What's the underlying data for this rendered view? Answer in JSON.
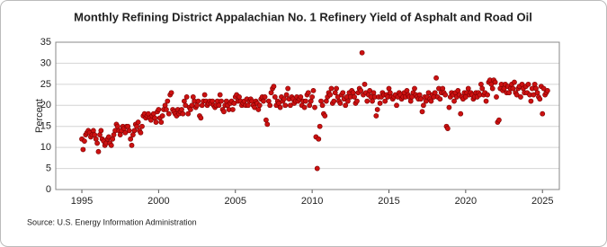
{
  "chart_data": {
    "type": "scatter",
    "title": "Monthly Refining District Appalachian No. 1 Refinery Yield of Asphalt and Road Oil",
    "y_label": "Percent",
    "source": "Source: U.S. Energy Information Administration",
    "color": "#cc1111",
    "xlim": [
      1993.3,
      2026.1
    ],
    "xticks": [
      1995,
      2000,
      2005,
      2010,
      2015,
      2020,
      2025
    ],
    "ylim": [
      0,
      35
    ],
    "yticks": [
      0,
      5,
      10,
      15,
      20,
      25,
      30,
      35
    ],
    "grid": true,
    "x": [
      1995,
      1995.08,
      1995.17,
      1995.25,
      1995.33,
      1995.42,
      1995.5,
      1995.58,
      1995.67,
      1995.75,
      1995.83,
      1995.92,
      1996,
      1996.08,
      1996.17,
      1996.25,
      1996.33,
      1996.42,
      1996.5,
      1996.58,
      1996.67,
      1996.75,
      1996.83,
      1996.92,
      1997,
      1997.08,
      1997.17,
      1997.25,
      1997.33,
      1997.42,
      1997.5,
      1997.58,
      1997.67,
      1997.75,
      1997.83,
      1997.92,
      1998,
      1998.08,
      1998.17,
      1998.25,
      1998.33,
      1998.42,
      1998.5,
      1998.58,
      1998.67,
      1998.75,
      1998.83,
      1998.92,
      1999,
      1999.08,
      1999.17,
      1999.25,
      1999.33,
      1999.42,
      1999.5,
      1999.58,
      1999.67,
      1999.75,
      1999.83,
      1999.92,
      2000,
      2000.08,
      2000.17,
      2000.25,
      2000.33,
      2000.42,
      2000.5,
      2000.58,
      2000.67,
      2000.75,
      2000.83,
      2000.92,
      2001,
      2001.08,
      2001.17,
      2001.25,
      2001.33,
      2001.42,
      2001.5,
      2001.58,
      2001.67,
      2001.75,
      2001.83,
      2001.92,
      2002,
      2002.08,
      2002.17,
      2002.25,
      2002.33,
      2002.42,
      2002.5,
      2002.58,
      2002.67,
      2002.75,
      2002.83,
      2002.92,
      2003,
      2003.08,
      2003.17,
      2003.25,
      2003.33,
      2003.42,
      2003.5,
      2003.58,
      2003.67,
      2003.75,
      2003.83,
      2003.92,
      2004,
      2004.08,
      2004.17,
      2004.25,
      2004.33,
      2004.42,
      2004.5,
      2004.58,
      2004.67,
      2004.75,
      2004.83,
      2004.92,
      2005,
      2005.08,
      2005.17,
      2005.25,
      2005.33,
      2005.42,
      2005.5,
      2005.58,
      2005.67,
      2005.75,
      2005.83,
      2005.92,
      2006,
      2006.08,
      2006.17,
      2006.25,
      2006.33,
      2006.42,
      2006.5,
      2006.58,
      2006.67,
      2006.75,
      2006.83,
      2006.92,
      2007,
      2007.08,
      2007.17,
      2007.25,
      2007.33,
      2007.42,
      2007.5,
      2007.58,
      2007.67,
      2007.75,
      2007.83,
      2007.92,
      2008,
      2008.08,
      2008.17,
      2008.25,
      2008.33,
      2008.42,
      2008.5,
      2008.58,
      2008.67,
      2008.75,
      2008.83,
      2008.92,
      2009,
      2009.08,
      2009.17,
      2009.25,
      2009.33,
      2009.42,
      2009.5,
      2009.58,
      2009.67,
      2009.75,
      2009.83,
      2009.92,
      2010,
      2010.08,
      2010.17,
      2010.25,
      2010.33,
      2010.42,
      2010.5,
      2010.58,
      2010.67,
      2010.75,
      2010.83,
      2010.92,
      2011,
      2011.08,
      2011.17,
      2011.25,
      2011.33,
      2011.42,
      2011.5,
      2011.58,
      2011.67,
      2011.75,
      2011.83,
      2011.92,
      2012,
      2012.08,
      2012.17,
      2012.25,
      2012.33,
      2012.42,
      2012.5,
      2012.58,
      2012.67,
      2012.75,
      2012.83,
      2012.92,
      2013,
      2013.08,
      2013.17,
      2013.25,
      2013.33,
      2013.42,
      2013.5,
      2013.58,
      2013.67,
      2013.75,
      2013.83,
      2013.92,
      2014,
      2014.08,
      2014.17,
      2014.25,
      2014.33,
      2014.42,
      2014.5,
      2014.58,
      2014.67,
      2014.75,
      2014.83,
      2014.92,
      2015,
      2015.08,
      2015.17,
      2015.25,
      2015.33,
      2015.42,
      2015.5,
      2015.58,
      2015.67,
      2015.75,
      2015.83,
      2015.92,
      2016,
      2016.08,
      2016.17,
      2016.25,
      2016.33,
      2016.42,
      2016.5,
      2016.58,
      2016.67,
      2016.75,
      2016.83,
      2016.92,
      2017,
      2017.08,
      2017.17,
      2017.25,
      2017.33,
      2017.42,
      2017.5,
      2017.58,
      2017.67,
      2017.75,
      2017.83,
      2017.92,
      2018,
      2018.08,
      2018.17,
      2018.25,
      2018.33,
      2018.42,
      2018.5,
      2018.58,
      2018.67,
      2018.75,
      2018.83,
      2018.92,
      2019,
      2019.08,
      2019.17,
      2019.25,
      2019.33,
      2019.42,
      2019.5,
      2019.58,
      2019.67,
      2019.75,
      2019.83,
      2019.92,
      2020,
      2020.08,
      2020.17,
      2020.25,
      2020.33,
      2020.42,
      2020.5,
      2020.58,
      2020.67,
      2020.75,
      2020.83,
      2020.92,
      2021,
      2021.08,
      2021.17,
      2021.25,
      2021.33,
      2021.42,
      2021.5,
      2021.58,
      2021.67,
      2021.75,
      2021.83,
      2021.92,
      2022,
      2022.08,
      2022.17,
      2022.25,
      2022.33,
      2022.42,
      2022.5,
      2022.58,
      2022.67,
      2022.75,
      2022.83,
      2022.92,
      2023,
      2023.08,
      2023.17,
      2023.25,
      2023.33,
      2023.42,
      2023.5,
      2023.58,
      2023.67,
      2023.75,
      2023.83,
      2023.92,
      2024,
      2024.08,
      2024.17,
      2024.25,
      2024.33,
      2024.42,
      2024.5,
      2024.58,
      2024.67,
      2024.75,
      2024.83,
      2024.92,
      2025,
      2025.08,
      2025.17,
      2025.25,
      2025.33
    ],
    "values": [
      12,
      9.5,
      11.5,
      13,
      13.5,
      14,
      13.5,
      12.5,
      13,
      14,
      13,
      12,
      11,
      9,
      13,
      14,
      12,
      11.5,
      10.5,
      11,
      12,
      12.5,
      11,
      10.5,
      12,
      13,
      14,
      15.5,
      15,
      14,
      13,
      14,
      15,
      14.5,
      13.5,
      15,
      15,
      14,
      12,
      10.5,
      13,
      14,
      15.5,
      15,
      16,
      14,
      13.5,
      15,
      17.5,
      18,
      17,
      17.5,
      18,
      17,
      16.5,
      17.5,
      18,
      17,
      16,
      18.5,
      19,
      17,
      16,
      17.5,
      19,
      20,
      19,
      21,
      18,
      22.5,
      23,
      19,
      18.5,
      18,
      17.5,
      19,
      18,
      18.5,
      19,
      18,
      21,
      20,
      22,
      18,
      19.5,
      19,
      20,
      22,
      21,
      19.5,
      20,
      21,
      17.5,
      17,
      20,
      21,
      22.5,
      21,
      20,
      20.5,
      21,
      20.5,
      21,
      20,
      19.5,
      20,
      21,
      20,
      22.5,
      21,
      19,
      18.5,
      20,
      21,
      20,
      19,
      20.5,
      21,
      19,
      20.5,
      22,
      22.5,
      21,
      22,
      21,
      20,
      20.5,
      21,
      20,
      21.5,
      20,
      21,
      21.5,
      21,
      20,
      19.5,
      21,
      20.5,
      19,
      20,
      21.5,
      22,
      21,
      22,
      16.5,
      15.5,
      21,
      20,
      23,
      24,
      24.5,
      22,
      20,
      21,
      20.5,
      19.5,
      22,
      21,
      21.5,
      20,
      22.5,
      24,
      21.5,
      20,
      22,
      21.5,
      20.5,
      21,
      22,
      21,
      21.5,
      22,
      20,
      21,
      19.5,
      21,
      22.5,
      23,
      20,
      21,
      22,
      23.5,
      19.5,
      12.5,
      5,
      12,
      15,
      21,
      20,
      18,
      17.5,
      21,
      22,
      23,
      22.5,
      24,
      20.5,
      21,
      23,
      24,
      22,
      21,
      20.5,
      22.5,
      23,
      21.5,
      20,
      22,
      21,
      23,
      22,
      23.5,
      23,
      22,
      20.5,
      21,
      23,
      24,
      23.5,
      32.5,
      22.5,
      25,
      23,
      21,
      22.5,
      23.5,
      22,
      21,
      23,
      22,
      17.5,
      19,
      22,
      20.5,
      22,
      23,
      22.5,
      21,
      22.5,
      22,
      24,
      23,
      22,
      21.5,
      22,
      22.5,
      20,
      22,
      23,
      22.5,
      21.5,
      22,
      23,
      22,
      23.5,
      22.5,
      22,
      21,
      22,
      23,
      24,
      22.5,
      22,
      21.5,
      22.5,
      21.5,
      18.5,
      20,
      22,
      21,
      22,
      23,
      21.5,
      21,
      22.5,
      22,
      23,
      26.5,
      22,
      24,
      21.5,
      23,
      24,
      23,
      22.5,
      15,
      14.5,
      19.5,
      22,
      23,
      22.5,
      21,
      23,
      22,
      23.5,
      22.5,
      18,
      22,
      21.5,
      23,
      22,
      23,
      24,
      22.5,
      23,
      22.5,
      21.5,
      22,
      23,
      22,
      23,
      22.5,
      25,
      24,
      22.5,
      23,
      21,
      22.5,
      25.5,
      26,
      25,
      24,
      26,
      25.5,
      22,
      16,
      16.5,
      24,
      25,
      23.5,
      24,
      25,
      23,
      24.5,
      23,
      24,
      25,
      24,
      25.5,
      23,
      22.5,
      24,
      24.5,
      22,
      25,
      24,
      23,
      24.5,
      23,
      25,
      22.5,
      21,
      24,
      22.5,
      25,
      24,
      23,
      22,
      21.5,
      24.5,
      18,
      24,
      22.5,
      23,
      23.5
    ]
  }
}
